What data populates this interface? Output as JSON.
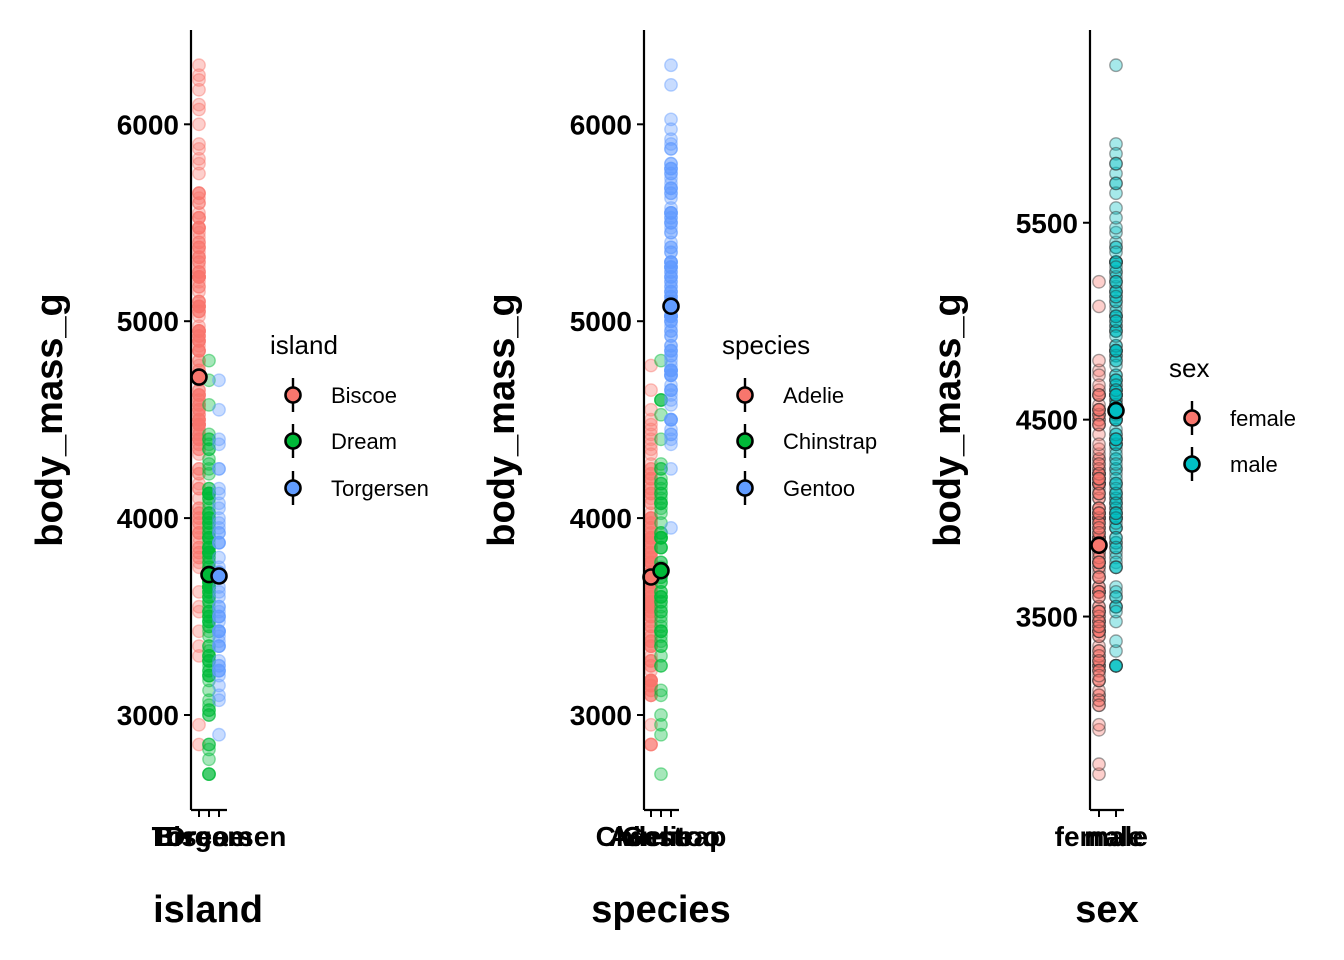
{
  "chart_data": [
    {
      "type": "scatter",
      "xlabel": "island",
      "ylabel": "body_mass_g",
      "categories": [
        "Biscoe",
        "Dream",
        "Torgersen"
      ],
      "yticks": [
        3000,
        4000,
        5000,
        6000
      ],
      "ylim": [
        2550,
        6490
      ],
      "legend": {
        "title": "island",
        "position": "right"
      },
      "series": [
        {
          "name": "Biscoe",
          "color": "#F8766D",
          "mean": 4716,
          "range": [
            2850,
            6300
          ]
        },
        {
          "name": "Dream",
          "color": "#00BA38",
          "mean": 3713,
          "range": [
            2700,
            4800
          ]
        },
        {
          "name": "Torgersen",
          "color": "#619CFF",
          "mean": 3706,
          "range": [
            2900,
            4700
          ]
        }
      ]
    },
    {
      "type": "scatter",
      "xlabel": "species",
      "ylabel": "body_mass_g",
      "categories": [
        "Adelie",
        "Chinstrap",
        "Gentoo"
      ],
      "yticks": [
        3000,
        4000,
        5000,
        6000
      ],
      "ylim": [
        2550,
        6490
      ],
      "legend": {
        "title": "species",
        "position": "right"
      },
      "series": [
        {
          "name": "Adelie",
          "color": "#F8766D",
          "mean": 3701,
          "range": [
            2850,
            4775
          ]
        },
        {
          "name": "Chinstrap",
          "color": "#00BA38",
          "mean": 3733,
          "range": [
            2700,
            4800
          ]
        },
        {
          "name": "Gentoo",
          "color": "#619CFF",
          "mean": 5076,
          "range": [
            3950,
            6300
          ]
        }
      ]
    },
    {
      "type": "scatter",
      "xlabel": "sex",
      "ylabel": "body_mass_g",
      "categories": [
        "female",
        "male"
      ],
      "yticks": [
        3500,
        4500,
        5500
      ],
      "ylim": [
        2550,
        6490
      ],
      "legend": {
        "title": "sex",
        "position": "right"
      },
      "series": [
        {
          "name": "female",
          "color": "#F8766D",
          "mean": 3862,
          "range": [
            2700,
            5200
          ]
        },
        {
          "name": "male",
          "color": "#00BFC4",
          "mean": 4546,
          "range": [
            3250,
            6300
          ]
        }
      ]
    }
  ]
}
